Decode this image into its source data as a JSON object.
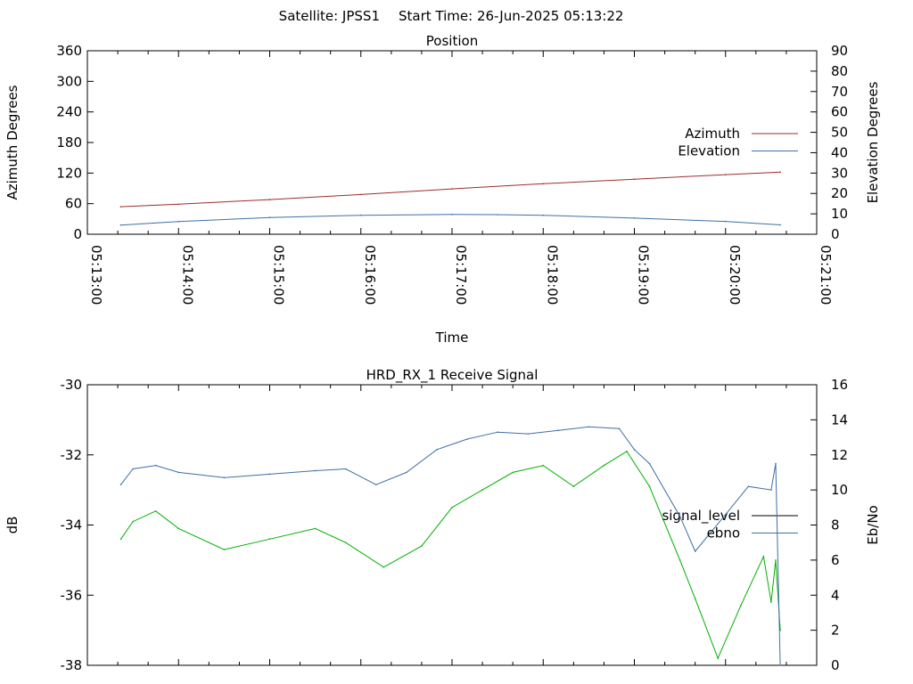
{
  "header": {
    "satellite_label": "Satellite: JPSS1",
    "start_time_label": "Start Time: 26-Jun-2025 05:13:22"
  },
  "chart_data": [
    {
      "type": "line",
      "title": "Position",
      "xlabel": "Time",
      "ylabel_left": "Azimuth Degrees",
      "ylabel_right": "Elevation Degrees",
      "x_ticks": [
        "05:13:00",
        "05:14:00",
        "05:15:00",
        "05:16:00",
        "05:17:00",
        "05:18:00",
        "05:19:00",
        "05:20:00",
        "05:21:00"
      ],
      "x_range": [
        "05:13:00",
        "05:21:00"
      ],
      "ylim_left": [
        0,
        360
      ],
      "yticks_left": [
        0,
        60,
        120,
        180,
        240,
        300,
        360
      ],
      "ylim_right": [
        0,
        90
      ],
      "yticks_right": [
        0,
        10,
        20,
        30,
        40,
        50,
        60,
        70,
        80,
        90
      ],
      "grid": false,
      "legend_position": "right",
      "series": [
        {
          "name": "Azimuth",
          "axis": "left",
          "color": "#9d2d2d",
          "x": [
            "05:13:22",
            "05:14:00",
            "05:15:00",
            "05:16:00",
            "05:17:00",
            "05:18:00",
            "05:19:00",
            "05:20:00",
            "05:20:36"
          ],
          "values": [
            54,
            59,
            68,
            78,
            89,
            99,
            108,
            117,
            122
          ]
        },
        {
          "name": "Elevation",
          "axis": "right",
          "color": "#3f6fa6",
          "x": [
            "05:13:22",
            "05:14:00",
            "05:15:00",
            "05:16:00",
            "05:17:00",
            "05:17:30",
            "05:18:00",
            "05:19:00",
            "05:20:00",
            "05:20:36"
          ],
          "values": [
            4.5,
            6.2,
            8.2,
            9.3,
            9.7,
            9.6,
            9.3,
            7.9,
            6.3,
            4.6
          ]
        }
      ]
    },
    {
      "type": "line",
      "title": "HRD_RX_1 Receive Signal",
      "ylabel_left": "dB",
      "ylabel_right": "Eb/No",
      "ylim_left": [
        -38,
        -30
      ],
      "yticks_left": [
        -38,
        -36,
        -34,
        -32,
        -30
      ],
      "ylim_right": [
        0,
        16
      ],
      "yticks_right": [
        0,
        2,
        4,
        6,
        8,
        10,
        12,
        14,
        16
      ],
      "x_range": [
        "05:13:00",
        "05:21:00"
      ],
      "grid": false,
      "legend_position": "right",
      "series": [
        {
          "name": "signal_level",
          "axis": "left",
          "color": "#00b000",
          "x": [
            "05:13:22",
            "05:13:30",
            "05:13:45",
            "05:14:00",
            "05:14:30",
            "05:15:00",
            "05:15:30",
            "05:15:50",
            "05:16:15",
            "05:16:40",
            "05:17:00",
            "05:17:20",
            "05:17:40",
            "05:18:00",
            "05:18:20",
            "05:18:40",
            "05:18:55",
            "05:19:10",
            "05:19:30",
            "05:19:40",
            "05:19:55",
            "05:20:10",
            "05:20:25",
            "05:20:30",
            "05:20:33",
            "05:20:36"
          ],
          "values": [
            -34.4,
            -33.9,
            -33.6,
            -34.1,
            -34.7,
            -34.4,
            -34.1,
            -34.5,
            -35.2,
            -34.6,
            -33.5,
            -33.0,
            -32.5,
            -32.3,
            -32.9,
            -32.3,
            -31.9,
            -32.9,
            -35.0,
            -36.1,
            -37.8,
            -36.3,
            -34.9,
            -36.2,
            -35.0,
            -37.0
          ]
        },
        {
          "name": "ebno",
          "axis": "right",
          "color": "#3f6fa6",
          "x": [
            "05:13:22",
            "05:13:30",
            "05:13:45",
            "05:14:00",
            "05:14:30",
            "05:15:00",
            "05:15:30",
            "05:15:50",
            "05:16:10",
            "05:16:30",
            "05:16:50",
            "05:17:10",
            "05:17:30",
            "05:17:50",
            "05:18:10",
            "05:18:30",
            "05:18:50",
            "05:19:00",
            "05:19:10",
            "05:19:30",
            "05:19:40",
            "05:20:00",
            "05:20:15",
            "05:20:30",
            "05:20:33",
            "05:20:36"
          ],
          "values": [
            10.3,
            11.2,
            11.4,
            11.0,
            10.7,
            10.9,
            11.1,
            11.2,
            10.3,
            11.0,
            12.3,
            12.9,
            13.3,
            13.2,
            13.4,
            13.6,
            13.5,
            12.3,
            11.5,
            8.5,
            6.5,
            8.6,
            10.2,
            10.0,
            11.5,
            0.0
          ]
        }
      ]
    }
  ]
}
